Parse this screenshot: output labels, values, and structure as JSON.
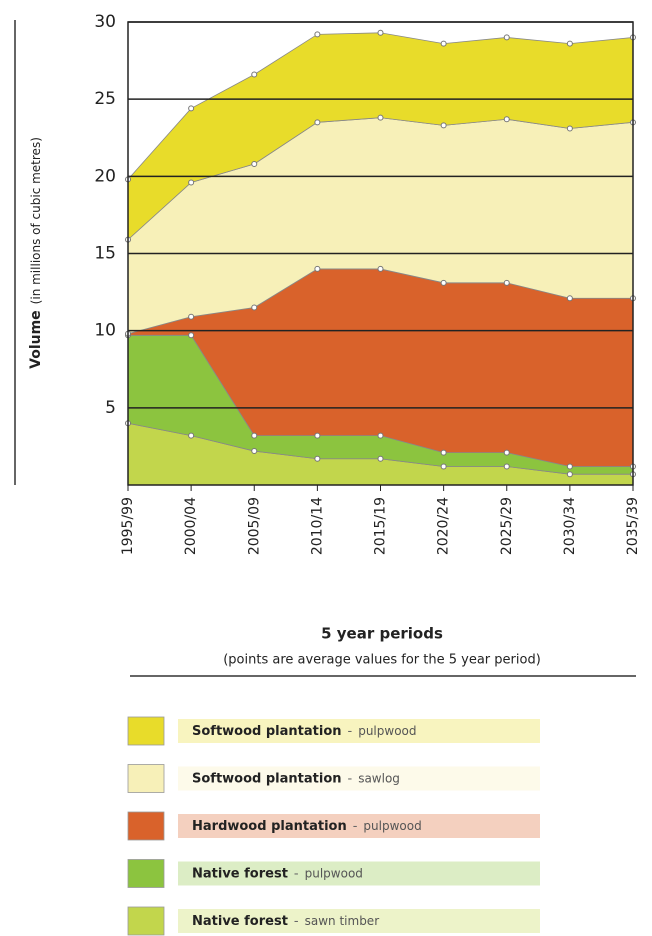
{
  "chart_data": {
    "type": "stacked_area",
    "ylabel": "Volume",
    "ylabel_note": "(in millions of cubic metres)",
    "xlabel": "5 year periods",
    "xlabel_note": "(points are average values for the 5 year period)",
    "categories": [
      "1995/99",
      "2000/04",
      "2005/09",
      "2010/14",
      "2015/19",
      "2020/24",
      "2025/29",
      "2030/34",
      "2035/39"
    ],
    "ylim": [
      0,
      30
    ],
    "yticks": [
      5,
      10,
      15,
      20,
      25,
      30
    ],
    "grid": true,
    "series": [
      {
        "group": "Softwood plantation",
        "product": "pulpwood",
        "color": "#e8dc2a",
        "values": [
          3.9,
          4.8,
          5.8,
          5.7,
          5.5,
          5.3,
          5.3,
          5.5,
          5.5
        ]
      },
      {
        "group": "Softwood plantation",
        "product": "sawlog",
        "color": "#f7f0b8",
        "values": [
          6.1,
          8.7,
          9.3,
          9.5,
          9.8,
          10.2,
          10.6,
          11.0,
          11.4
        ]
      },
      {
        "group": "Hardwood plantation",
        "product": "pulpwood",
        "color": "#d9622b",
        "values": [
          0.1,
          1.2,
          8.3,
          10.8,
          10.8,
          11.0,
          11.0,
          10.9,
          10.9
        ]
      },
      {
        "group": "Native forest",
        "product": "pulpwood",
        "color": "#8cc43f",
        "values": [
          5.7,
          6.5,
          1.0,
          1.5,
          1.5,
          0.9,
          0.9,
          0.5,
          0.5
        ]
      },
      {
        "group": "Native forest",
        "product": "sawn timber",
        "color": "#c2d64c",
        "values": [
          4.0,
          3.2,
          2.2,
          1.7,
          1.7,
          1.2,
          1.2,
          0.7,
          0.7
        ]
      }
    ]
  }
}
